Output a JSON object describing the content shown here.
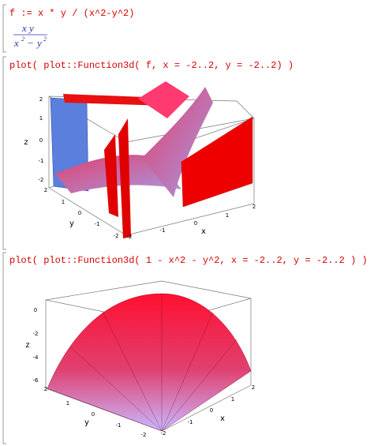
{
  "cells": [
    {
      "input": "f := x * y / (x^2-y^2)",
      "output": {
        "numerator": "x y",
        "base1": "x",
        "exp1": "2",
        "op": "−",
        "base2": "y",
        "exp2": "2"
      }
    },
    {
      "input": "plot( plot::Function3d( f, x = -2..2, y = -2..2) )",
      "plot": {
        "zlabel": "z",
        "zticks": [
          "2",
          "1",
          "0",
          "-1",
          "-2"
        ],
        "ylabel": "y",
        "yticks": [
          "2",
          "1",
          "0",
          "-1",
          "-2"
        ],
        "xlabel": "x",
        "xticks": [
          "-2",
          "-1",
          "0",
          "1",
          "2"
        ]
      }
    },
    {
      "input": "plot( plot::Function3d( 1 - x^2 - y^2, x = -2..2, y = -2..2 ) )",
      "plot": {
        "zlabel": "z",
        "zticks": [
          "0",
          "-2",
          "-4",
          "-6"
        ],
        "ylabel": "y",
        "yticks": [
          "2",
          "1",
          "0",
          "-1",
          "-2"
        ],
        "xlabel": "x",
        "xticks": [
          "-2",
          "-1",
          "0",
          "1",
          "2"
        ]
      }
    }
  ]
}
